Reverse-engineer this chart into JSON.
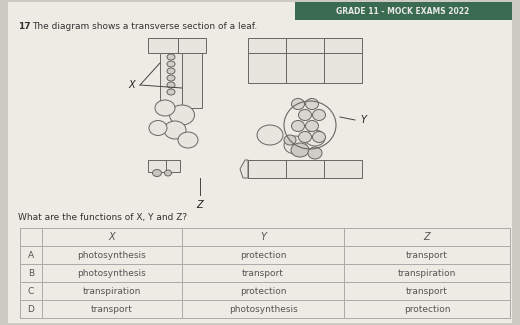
{
  "header": "GRADE 11 - MOCK EXAMS 2022",
  "question_number": "17",
  "question_text": "The diagram shows a transverse section of a leaf.",
  "sub_question": "What are the functions of X, Y and Z?",
  "table_headers": [
    "",
    "X",
    "Y",
    "Z"
  ],
  "table_rows": [
    [
      "A",
      "photosynthesis",
      "protection",
      "transport"
    ],
    [
      "B",
      "photosynthesis",
      "transport",
      "transpiration"
    ],
    [
      "C",
      "transpiration",
      "protection",
      "transport"
    ],
    [
      "D",
      "transport",
      "photosynthesis",
      "protection"
    ]
  ],
  "bg_color": "#cdc9c3",
  "paper_color": "#eeeae4",
  "header_bg": "#3a6b50",
  "header_text_color": "#e8e8e8",
  "table_border_color": "#aaaaaa",
  "cell_color": "#e8e5de",
  "cell_edge": "#666666",
  "text_color": "#555555",
  "text_color_dark": "#333333"
}
